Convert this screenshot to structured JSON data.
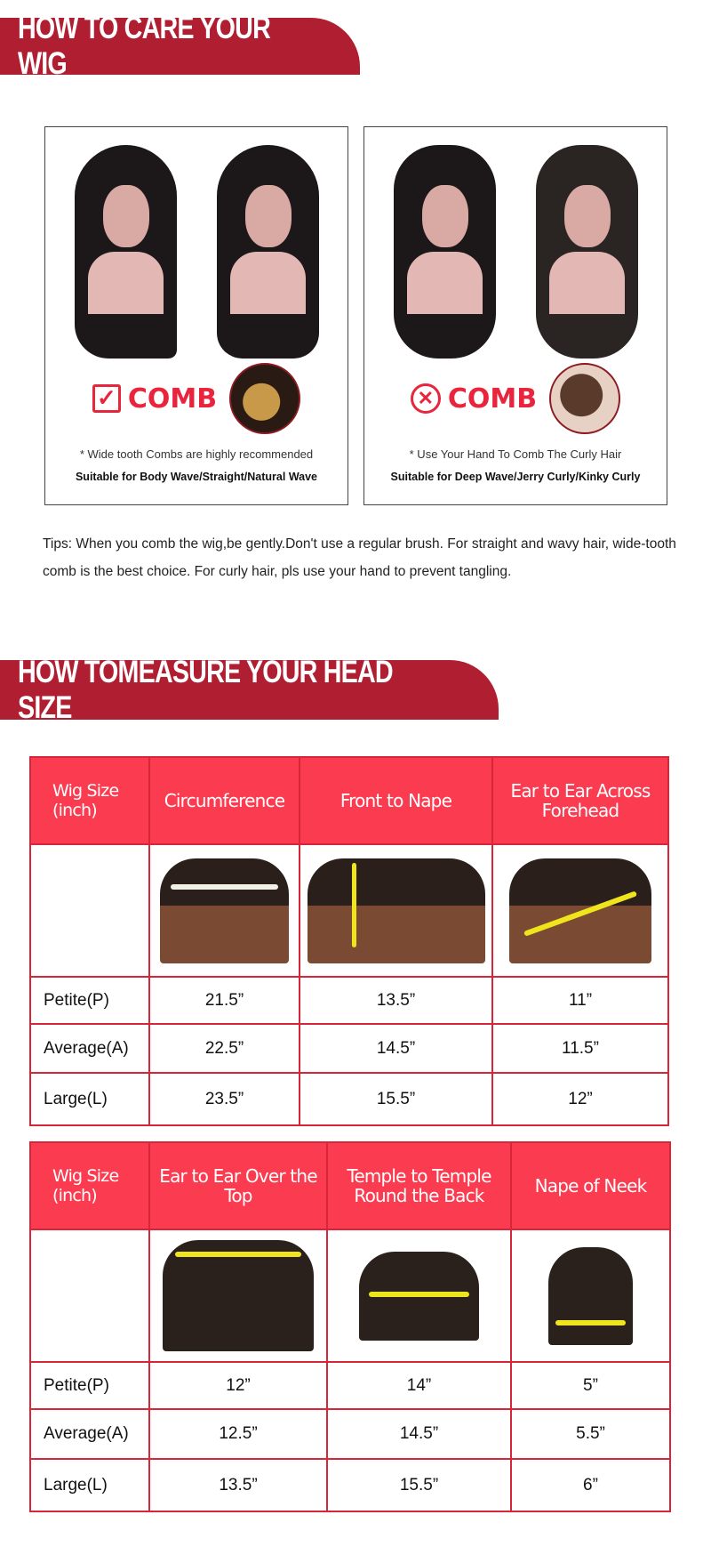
{
  "care_section": {
    "title": "HOW TO CARE YOUR WIG",
    "cards": [
      {
        "icon": "checkbox-check-icon",
        "comb_label": "COMB",
        "note": "* Wide tooth Combs are highly recommended",
        "suitable": "Suitable for Body Wave/Straight/Natural Wave"
      },
      {
        "icon": "circle-x-icon",
        "comb_label": "COMB",
        "note": "* Use Your Hand To Comb The Curly Hair",
        "suitable": "Suitable for Deep Wave/Jerry Curly/Kinky Curly"
      }
    ],
    "tips": "Tips: When you comb the wig,be gently.Don't use a regular brush. For straight and wavy hair, wide-tooth comb is the best choice. For curly hair, pls use your hand to prevent tangling."
  },
  "measure_section": {
    "title": "HOW TOMEASURE YOUR HEAD SIZE",
    "tables": [
      {
        "headers": [
          "Wig Size (inch)",
          "Circumference",
          "Front to Nape",
          "Ear to Ear Across Forehead"
        ],
        "rows": [
          {
            "size": "Petite(P)",
            "values": [
              "21.5”",
              "13.5”",
              "11”"
            ]
          },
          {
            "size": "Average(A)",
            "values": [
              "22.5”",
              "14.5”",
              "11.5”"
            ]
          },
          {
            "size": "Large(L)",
            "values": [
              "23.5”",
              "15.5”",
              "12”"
            ]
          }
        ]
      },
      {
        "headers": [
          "Wig Size (inch)",
          "Ear to Ear Over the Top",
          "Temple to Temple Round the Back",
          "Nape of Neek"
        ],
        "rows": [
          {
            "size": "Petite(P)",
            "values": [
              "12”",
              "14”",
              "5”"
            ]
          },
          {
            "size": "Average(A)",
            "values": [
              "12.5”",
              "14.5”",
              "5.5”"
            ]
          },
          {
            "size": "Large(L)",
            "values": [
              "13.5”",
              "15.5”",
              "6”"
            ]
          }
        ]
      }
    ]
  },
  "colors": {
    "banner": "#b01e31",
    "table_header": "#fa3b50",
    "accent": "#e8253d"
  }
}
